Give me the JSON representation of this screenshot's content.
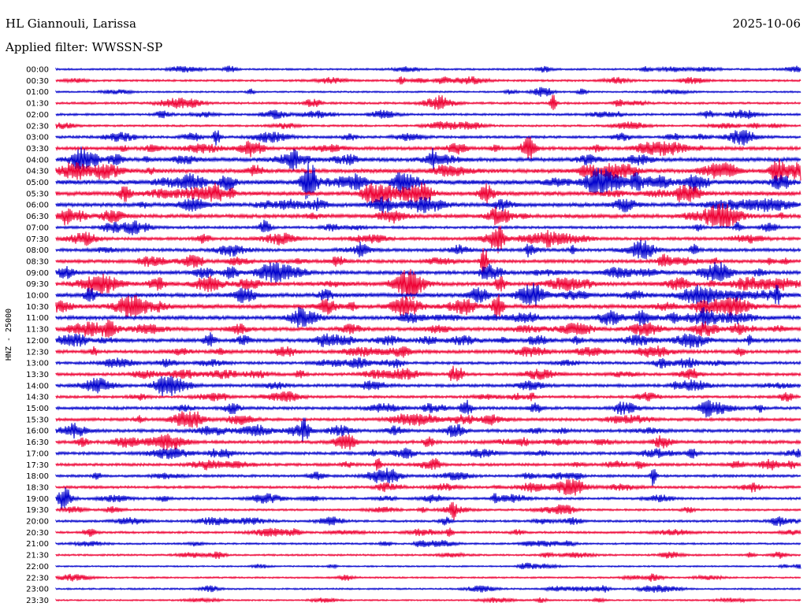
{
  "header": {
    "station": "HL Giannouli, Larissa",
    "date": "2025-10-06",
    "filter": "Applied filter: WWSSN-SP"
  },
  "chart_data": {
    "type": "line",
    "ylabel": "HNZ - 25000",
    "row_labels": [
      "00:00",
      "00:30",
      "01:00",
      "01:30",
      "02:00",
      "02:30",
      "03:00",
      "03:30",
      "04:00",
      "04:30",
      "05:00",
      "05:30",
      "06:00",
      "06:30",
      "07:00",
      "07:30",
      "08:00",
      "08:30",
      "09:00",
      "09:30",
      "10:00",
      "10:30",
      "11:00",
      "11:30",
      "12:00",
      "12:30",
      "13:00",
      "13:30",
      "14:00",
      "14:30",
      "15:00",
      "15:30",
      "16:00",
      "16:30",
      "17:00",
      "17:30",
      "18:00",
      "18:30",
      "19:00",
      "19:30",
      "20:00",
      "20:30",
      "21:00",
      "21:30",
      "22:00",
      "22:30",
      "23:00",
      "23:30"
    ],
    "activity": [
      0.25,
      0.3,
      0.2,
      0.35,
      0.35,
      0.3,
      0.45,
      0.65,
      0.8,
      0.85,
      1.0,
      0.85,
      0.8,
      0.75,
      0.45,
      0.55,
      0.6,
      0.65,
      0.7,
      0.8,
      0.85,
      0.85,
      0.8,
      0.7,
      0.75,
      0.65,
      0.5,
      0.55,
      0.55,
      0.45,
      0.55,
      0.55,
      0.6,
      0.6,
      0.55,
      0.5,
      0.45,
      0.45,
      0.4,
      0.3,
      0.35,
      0.35,
      0.25,
      0.25,
      0.15,
      0.2,
      0.2,
      0.15
    ],
    "colors": [
      "#0000cc",
      "#ee0033"
    ],
    "grid": false,
    "legend": "none"
  }
}
